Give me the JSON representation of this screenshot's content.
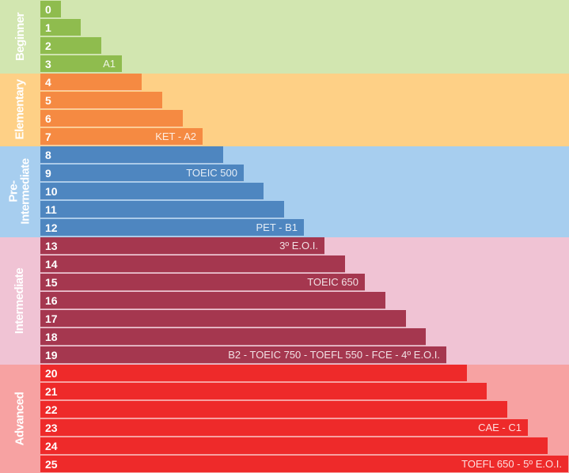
{
  "chart_data": {
    "type": "bar",
    "orientation": "horizontal",
    "title": "",
    "xlabel": "",
    "ylabel": "",
    "xlim": [
      0,
      26
    ],
    "grid": false,
    "categories": [
      "0",
      "1",
      "2",
      "3",
      "4",
      "5",
      "6",
      "7",
      "8",
      "9",
      "10",
      "11",
      "12",
      "13",
      "14",
      "15",
      "16",
      "17",
      "18",
      "19",
      "20",
      "21",
      "22",
      "23",
      "24",
      "25"
    ],
    "values": [
      1,
      2,
      3,
      4,
      5,
      6,
      7,
      8,
      9,
      10,
      11,
      12,
      13,
      14,
      15,
      16,
      17,
      18,
      19,
      20,
      21,
      22,
      23,
      24,
      25,
      26
    ],
    "bar_labels": [
      "",
      "",
      "",
      "A1",
      "",
      "",
      "",
      "KET - A2",
      "",
      "TOEIC 500",
      "",
      "",
      "PET - B1",
      "3º E.O.I.",
      "",
      "TOEIC 650",
      "",
      "",
      "",
      "B2 - TOEIC 750 - TOEFL 550 - FCE - 4º E.O.I.",
      "",
      "",
      "",
      "CAE - C1",
      "",
      "TOEFL 650 - 5º E.O.I."
    ],
    "bands": [
      {
        "name": "Beginner",
        "from": 0,
        "to": 3,
        "bg_color": "#d2e6b0",
        "bar_color": "#8fbc4e"
      },
      {
        "name": "Elementary",
        "from": 4,
        "to": 7,
        "bg_color": "#fed086",
        "bar_color": "#f58a42"
      },
      {
        "name": "Pre-Intermediate",
        "from": 8,
        "to": 12,
        "bg_color": "#a7ceef",
        "bar_color": "#4e86c0"
      },
      {
        "name": "Intermediate",
        "from": 13,
        "to": 19,
        "bg_color": "#f0c3d4",
        "bar_color": "#a5374f"
      },
      {
        "name": "Advanced",
        "from": 20,
        "to": 25,
        "bg_color": "#f7a2a2",
        "bar_color": "#ee2a2a"
      }
    ]
  }
}
